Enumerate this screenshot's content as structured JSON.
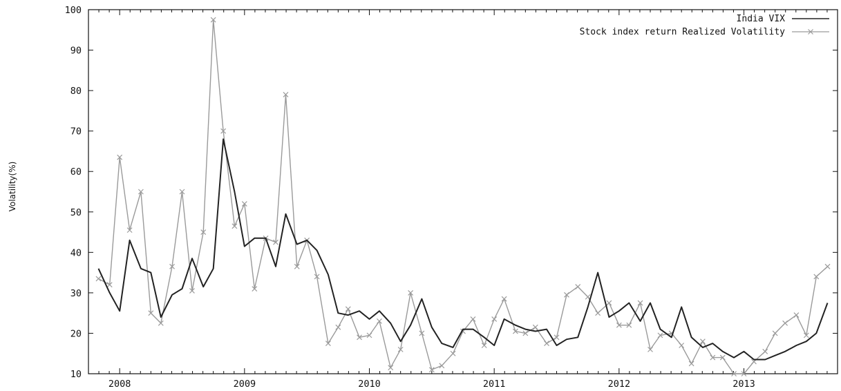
{
  "chart_data": {
    "type": "line",
    "title": "",
    "xlabel": "",
    "ylabel": "Volatility(%)",
    "xlim": [
      2007.75,
      2013.75
    ],
    "ylim": [
      10,
      100
    ],
    "y_ticks": [
      10,
      20,
      30,
      40,
      50,
      60,
      70,
      80,
      90,
      100
    ],
    "x_ticks": [
      {
        "value": 2008.0,
        "label": "2008"
      },
      {
        "value": 2009.0,
        "label": "2009"
      },
      {
        "value": 2010.0,
        "label": "2010"
      },
      {
        "value": 2011.0,
        "label": "2011"
      },
      {
        "value": 2012.0,
        "label": "2012"
      },
      {
        "value": 2013.0,
        "label": "2013"
      }
    ],
    "grid": false,
    "legend_position": "top-right",
    "series": [
      {
        "name": "India VIX",
        "color": "#222222",
        "marker": "none",
        "x": [
          2007.83,
          2007.92,
          2008.0,
          2008.08,
          2008.17,
          2008.25,
          2008.33,
          2008.42,
          2008.5,
          2008.58,
          2008.67,
          2008.75,
          2008.83,
          2008.92,
          2009.0,
          2009.08,
          2009.17,
          2009.25,
          2009.33,
          2009.42,
          2009.5,
          2009.58,
          2009.67,
          2009.75,
          2009.83,
          2009.92,
          2010.0,
          2010.08,
          2010.17,
          2010.25,
          2010.33,
          2010.42,
          2010.5,
          2010.58,
          2010.67,
          2010.75,
          2010.83,
          2010.92,
          2011.0,
          2011.08,
          2011.17,
          2011.25,
          2011.33,
          2011.42,
          2011.5,
          2011.58,
          2011.67,
          2011.75,
          2011.83,
          2011.92,
          2012.0,
          2012.08,
          2012.17,
          2012.25,
          2012.33,
          2012.42,
          2012.5,
          2012.58,
          2012.67,
          2012.75,
          2012.83,
          2012.92,
          2013.0,
          2013.08,
          2013.17,
          2013.25,
          2013.33,
          2013.42,
          2013.5,
          2013.58,
          2013.67
        ],
        "y": [
          36,
          30,
          25.5,
          43,
          36,
          35,
          24,
          29.5,
          31,
          38.5,
          31.5,
          36,
          68,
          55,
          41.5,
          43.5,
          43.5,
          36.5,
          49.5,
          42,
          43,
          40.5,
          34.5,
          25,
          24.5,
          25.5,
          23.5,
          25.5,
          22.5,
          18,
          22,
          28.5,
          21.5,
          17.5,
          16.5,
          21,
          21,
          19,
          17,
          23.5,
          22,
          21,
          20.5,
          21,
          17,
          18.5,
          19,
          26.5,
          35,
          24,
          25.5,
          27.5,
          23,
          27.5,
          21,
          19,
          26.5,
          19,
          16.5,
          17.5,
          15.5,
          14,
          15.5,
          13.5,
          13.5,
          14.5,
          15.5,
          17,
          18,
          20,
          27.5
        ]
      },
      {
        "name": "Stock index return Realized Volatility",
        "color": "#9a9a9a",
        "marker": "x",
        "x": [
          2007.83,
          2007.92,
          2008.0,
          2008.08,
          2008.17,
          2008.25,
          2008.33,
          2008.42,
          2008.5,
          2008.58,
          2008.67,
          2008.75,
          2008.83,
          2008.92,
          2009.0,
          2009.08,
          2009.17,
          2009.25,
          2009.33,
          2009.42,
          2009.5,
          2009.58,
          2009.67,
          2009.75,
          2009.83,
          2009.92,
          2010.0,
          2010.08,
          2010.17,
          2010.25,
          2010.33,
          2010.42,
          2010.5,
          2010.58,
          2010.67,
          2010.75,
          2010.83,
          2010.92,
          2011.0,
          2011.08,
          2011.17,
          2011.25,
          2011.33,
          2011.42,
          2011.5,
          2011.58,
          2011.67,
          2011.75,
          2011.83,
          2011.92,
          2012.0,
          2012.08,
          2012.17,
          2012.25,
          2012.33,
          2012.42,
          2012.5,
          2012.58,
          2012.67,
          2012.75,
          2012.83,
          2012.92,
          2013.0,
          2013.08,
          2013.17,
          2013.25,
          2013.33,
          2013.42,
          2013.5,
          2013.58,
          2013.67
        ],
        "y": [
          33.5,
          32,
          63.5,
          45.5,
          55,
          25,
          22.5,
          36.5,
          55,
          30.5,
          45,
          97.5,
          70,
          46.5,
          52,
          31,
          43.5,
          42.5,
          79,
          36.5,
          43,
          34,
          17.5,
          21.5,
          26,
          19,
          19.5,
          23,
          11.5,
          16,
          30,
          20,
          11,
          12,
          15,
          20.5,
          23.5,
          17,
          23.5,
          28.5,
          20.5,
          20,
          21.5,
          17.5,
          19,
          29.5,
          31.5,
          29,
          25,
          27.5,
          22,
          22,
          27.5,
          16,
          19.5,
          20,
          17,
          12.5,
          18,
          14,
          14,
          10,
          10,
          13,
          15.5,
          20,
          22.5,
          24.5,
          19.5,
          34,
          36.5
        ]
      }
    ]
  }
}
